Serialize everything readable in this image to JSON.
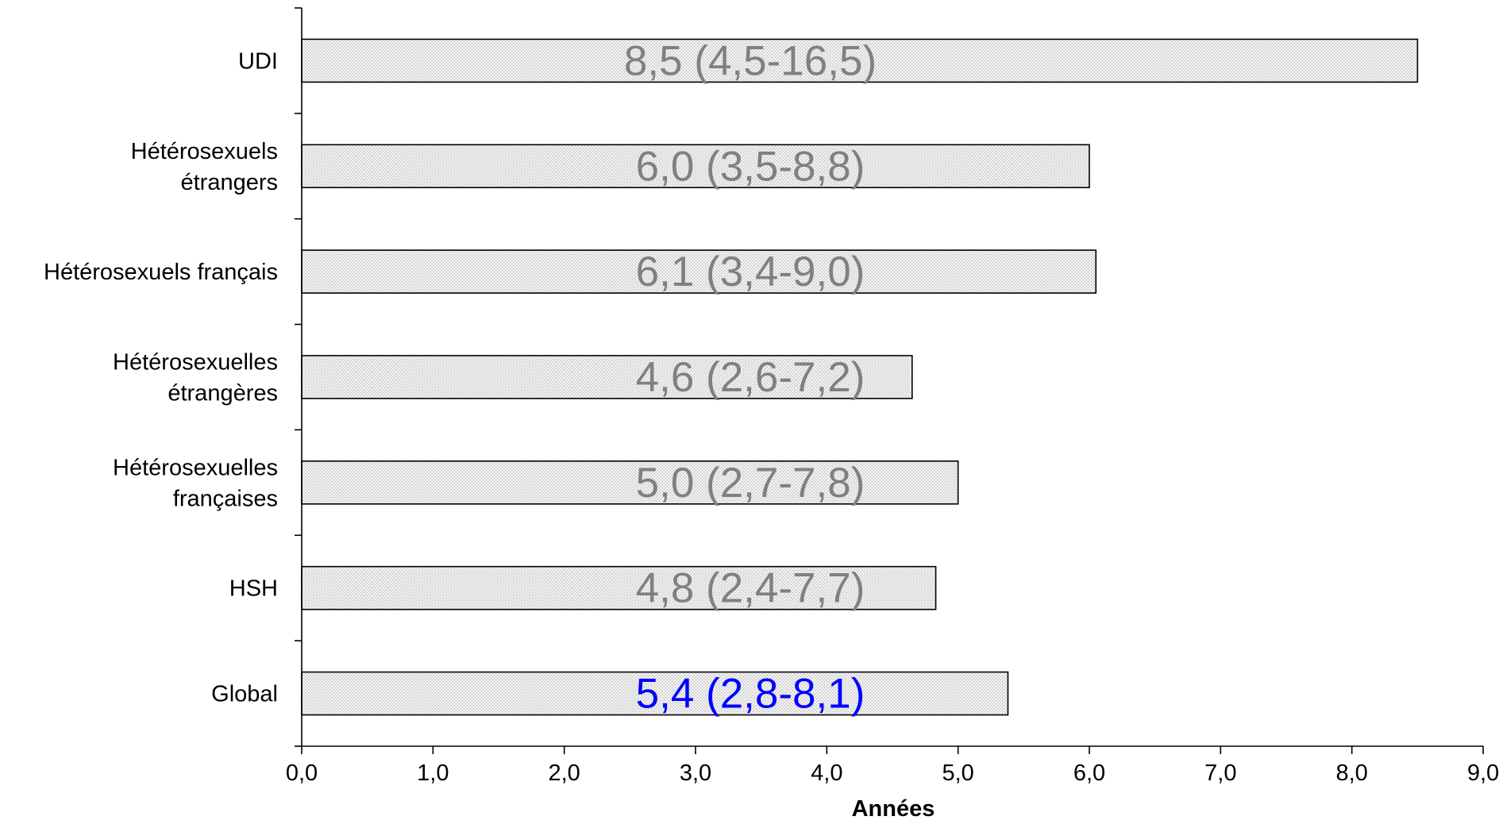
{
  "chart_data": {
    "type": "bar",
    "orientation": "horizontal",
    "categories": [
      [
        "UDI"
      ],
      [
        "Hétérosexuels",
        "étrangers"
      ],
      [
        "Hétérosexuels  français"
      ],
      [
        "Hétérosexuelles",
        "étrangères"
      ],
      [
        "Hétérosexuelles",
        "françaises"
      ],
      [
        "HSH"
      ],
      [
        "Global"
      ]
    ],
    "values": [
      8.5,
      6.0,
      6.05,
      4.65,
      5.0,
      4.83,
      5.38
    ],
    "bar_labels": [
      "8,5 (4,5-16,5)",
      "6,0 (3,5-8,8)",
      "6,1 (3,4-9,0)",
      "4,6 (2,6-7,2)",
      "5,0 (2,7-7,8)",
      "4,8 (2,4-7,7)",
      "5,4 (2,8-8,1)"
    ],
    "bar_label_colors": [
      "#808080",
      "#808080",
      "#808080",
      "#808080",
      "#808080",
      "#808080",
      "#0000ff"
    ],
    "xlabel": "Années",
    "ylabel": "",
    "title": "",
    "xlim": [
      0,
      9
    ],
    "xticks": [
      "0,0",
      "1,0",
      "2,0",
      "3,0",
      "4,0",
      "5,0",
      "6,0",
      "7,0",
      "8,0",
      "9,0"
    ],
    "grid": false,
    "bar_fill": "#e4e4e4",
    "bar_stroke": "#000000"
  }
}
